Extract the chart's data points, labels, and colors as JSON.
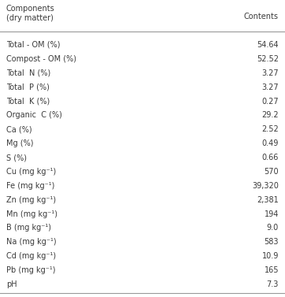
{
  "col1_header": "Components\n(dry matter)",
  "col2_header": "Contents",
  "rows": [
    [
      "Total - OM (%)",
      "54.64"
    ],
    [
      "Compost - OM (%)",
      "52.52"
    ],
    [
      "Total  N (%)",
      "3.27"
    ],
    [
      "Total  P (%)",
      "3.27"
    ],
    [
      "Total  K (%)",
      "0.27"
    ],
    [
      "Organic  C (%)",
      "29.2"
    ],
    [
      "Ca (%)",
      "2.52"
    ],
    [
      "Mg (%)",
      "0.49"
    ],
    [
      "S (%)",
      "0.66"
    ],
    [
      "Cu (mg kg⁻¹)",
      "570"
    ],
    [
      "Fe (mg kg⁻¹)",
      "39,320"
    ],
    [
      "Zn (mg kg⁻¹)",
      "2,381"
    ],
    [
      "Mn (mg kg⁻¹)",
      "194"
    ],
    [
      "B (mg kg⁻¹)",
      "9.0"
    ],
    [
      "Na (mg kg⁻¹)",
      "583"
    ],
    [
      "Cd (mg kg⁻¹)",
      "10.9"
    ],
    [
      "Pb (mg kg⁻¹)",
      "165"
    ],
    [
      "pH",
      "7.3"
    ]
  ],
  "bg_color": "#ffffff",
  "text_color": "#3a3a3a",
  "font_size": 7.0,
  "line_color": "#999999"
}
